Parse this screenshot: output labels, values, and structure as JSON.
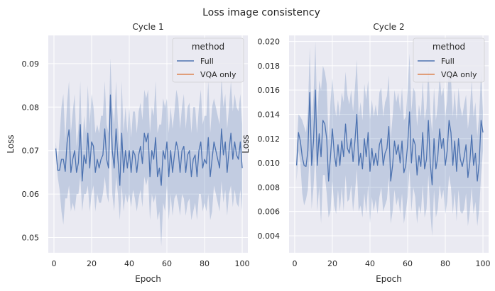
{
  "figure": {
    "suptitle": "Loss image consistency"
  },
  "colors": {
    "background": "#eaeaf2",
    "grid": "#ffffff",
    "Full": "#4c72b0",
    "VQA only": "#dd8452",
    "band_opacity": 0.25
  },
  "chart_data": [
    {
      "type": "line",
      "title": "Cycle 1",
      "xlabel": "Epoch",
      "ylabel": "Loss",
      "xlim": [
        -3,
        103
      ],
      "ylim": [
        0.0465,
        0.0965
      ],
      "xticks": [
        0,
        20,
        40,
        60,
        80,
        100
      ],
      "yticks": [
        0.05,
        0.06,
        0.07,
        0.08,
        0.09
      ],
      "ytick_labels": [
        "0.05",
        "0.06",
        "0.07",
        "0.08",
        "0.09"
      ],
      "grid": true,
      "legend": {
        "title": "method",
        "placement": "upper right",
        "entries": [
          "Full",
          "VQA only"
        ]
      },
      "series": [
        {
          "name": "Full",
          "x": [
            1,
            2,
            3,
            4,
            5,
            6,
            7,
            8,
            9,
            10,
            11,
            12,
            13,
            14,
            15,
            16,
            17,
            18,
            19,
            20,
            21,
            22,
            23,
            24,
            25,
            26,
            27,
            28,
            29,
            30,
            31,
            32,
            33,
            34,
            35,
            36,
            37,
            38,
            39,
            40,
            41,
            42,
            43,
            44,
            45,
            46,
            47,
            48,
            49,
            50,
            51,
            52,
            53,
            54,
            55,
            56,
            57,
            58,
            59,
            60,
            61,
            62,
            63,
            64,
            65,
            66,
            67,
            68,
            69,
            70,
            71,
            72,
            73,
            74,
            75,
            76,
            77,
            78,
            79,
            80,
            81,
            82,
            83,
            84,
            85,
            86,
            87,
            88,
            89,
            90,
            91,
            92,
            93,
            94,
            95,
            96,
            97,
            98,
            99,
            100
          ],
          "y": [
            0.0705,
            0.0655,
            0.0655,
            0.068,
            0.068,
            0.0652,
            0.072,
            0.0748,
            0.065,
            0.068,
            0.07,
            0.065,
            0.0672,
            0.076,
            0.063,
            0.069,
            0.067,
            0.074,
            0.066,
            0.072,
            0.071,
            0.065,
            0.068,
            0.066,
            0.068,
            0.069,
            0.075,
            0.068,
            0.066,
            0.0828,
            0.07,
            0.066,
            0.075,
            0.068,
            0.062,
            0.074,
            0.065,
            0.07,
            0.066,
            0.07,
            0.065,
            0.07,
            0.069,
            0.065,
            0.069,
            0.071,
            0.067,
            0.074,
            0.072,
            0.074,
            0.064,
            0.07,
            0.068,
            0.073,
            0.064,
            0.066,
            0.062,
            0.07,
            0.068,
            0.072,
            0.064,
            0.07,
            0.065,
            0.069,
            0.072,
            0.07,
            0.065,
            0.07,
            0.071,
            0.065,
            0.069,
            0.07,
            0.064,
            0.068,
            0.069,
            0.064,
            0.07,
            0.072,
            0.066,
            0.068,
            0.067,
            0.073,
            0.064,
            0.068,
            0.072,
            0.07,
            0.068,
            0.066,
            0.075,
            0.069,
            0.072,
            0.065,
            0.07,
            0.074,
            0.068,
            0.072,
            0.069,
            0.068,
            0.072,
            0.066
          ],
          "ci_lower": [
            0.069,
            0.064,
            0.061,
            0.056,
            0.053,
            0.059,
            0.059,
            0.062,
            0.056,
            0.058,
            0.056,
            0.06,
            0.06,
            0.064,
            0.056,
            0.06,
            0.06,
            0.062,
            0.056,
            0.06,
            0.062,
            0.056,
            0.06,
            0.058,
            0.058,
            0.06,
            0.064,
            0.06,
            0.058,
            0.075,
            0.06,
            0.056,
            0.064,
            0.06,
            0.054,
            0.062,
            0.056,
            0.06,
            0.058,
            0.06,
            0.057,
            0.061,
            0.059,
            0.056,
            0.059,
            0.061,
            0.057,
            0.064,
            0.062,
            0.064,
            0.054,
            0.06,
            0.058,
            0.06,
            0.054,
            0.056,
            0.048,
            0.058,
            0.056,
            0.062,
            0.054,
            0.06,
            0.055,
            0.059,
            0.06,
            0.058,
            0.055,
            0.06,
            0.059,
            0.055,
            0.058,
            0.059,
            0.054,
            0.056,
            0.058,
            0.054,
            0.06,
            0.06,
            0.056,
            0.058,
            0.056,
            0.06,
            0.054,
            0.056,
            0.062,
            0.06,
            0.058,
            0.056,
            0.063,
            0.058,
            0.061,
            0.055,
            0.06,
            0.062,
            0.057,
            0.061,
            0.058,
            0.057,
            0.061,
            0.056
          ],
          "ci_upper": [
            0.072,
            0.067,
            0.073,
            0.08,
            0.083,
            0.072,
            0.081,
            0.086,
            0.074,
            0.079,
            0.083,
            0.071,
            0.075,
            0.086,
            0.07,
            0.078,
            0.074,
            0.085,
            0.076,
            0.083,
            0.08,
            0.074,
            0.076,
            0.074,
            0.078,
            0.078,
            0.086,
            0.076,
            0.074,
            0.0912,
            0.08,
            0.076,
            0.086,
            0.076,
            0.07,
            0.086,
            0.074,
            0.08,
            0.074,
            0.08,
            0.073,
            0.079,
            0.079,
            0.074,
            0.079,
            0.081,
            0.077,
            0.084,
            0.082,
            0.084,
            0.074,
            0.08,
            0.078,
            0.086,
            0.074,
            0.076,
            0.076,
            0.082,
            0.08,
            0.082,
            0.074,
            0.08,
            0.075,
            0.079,
            0.084,
            0.082,
            0.075,
            0.08,
            0.083,
            0.075,
            0.08,
            0.081,
            0.074,
            0.08,
            0.08,
            0.074,
            0.08,
            0.084,
            0.076,
            0.078,
            0.078,
            0.086,
            0.074,
            0.08,
            0.082,
            0.08,
            0.078,
            0.076,
            0.087,
            0.08,
            0.083,
            0.075,
            0.08,
            0.086,
            0.079,
            0.083,
            0.08,
            0.079,
            0.083,
            0.076
          ]
        },
        {
          "name": "VQA only",
          "x": [],
          "y": []
        }
      ]
    },
    {
      "type": "line",
      "title": "Cycle 2",
      "xlabel": "Epoch",
      "ylabel": "Loss",
      "xlim": [
        -3,
        103
      ],
      "ylim": [
        0.0026,
        0.0205
      ],
      "xticks": [
        0,
        20,
        40,
        60,
        80,
        100
      ],
      "yticks": [
        0.004,
        0.006,
        0.008,
        0.01,
        0.012,
        0.014,
        0.016,
        0.018,
        0.02
      ],
      "ytick_labels": [
        "0.004",
        "0.006",
        "0.008",
        "0.010",
        "0.012",
        "0.014",
        "0.016",
        "0.018",
        "0.020"
      ],
      "grid": true,
      "legend": {
        "title": "method",
        "placement": "upper right",
        "entries": [
          "Full",
          "VQA only"
        ]
      },
      "series": [
        {
          "name": "Full",
          "x": [
            1,
            2,
            3,
            4,
            5,
            6,
            7,
            8,
            9,
            10,
            11,
            12,
            13,
            14,
            15,
            16,
            17,
            18,
            19,
            20,
            21,
            22,
            23,
            24,
            25,
            26,
            27,
            28,
            29,
            30,
            31,
            32,
            33,
            34,
            35,
            36,
            37,
            38,
            39,
            40,
            41,
            42,
            43,
            44,
            45,
            46,
            47,
            48,
            49,
            50,
            51,
            52,
            53,
            54,
            55,
            56,
            57,
            58,
            59,
            60,
            61,
            62,
            63,
            64,
            65,
            66,
            67,
            68,
            69,
            70,
            71,
            72,
            73,
            74,
            75,
            76,
            77,
            78,
            79,
            80,
            81,
            82,
            83,
            84,
            85,
            86,
            87,
            88,
            89,
            90,
            91,
            92,
            93,
            94,
            95,
            96,
            97,
            98,
            99,
            100
          ],
          "y": [
            0.0098,
            0.0125,
            0.0118,
            0.0105,
            0.0098,
            0.0097,
            0.011,
            0.0158,
            0.0098,
            0.0118,
            0.016,
            0.0098,
            0.0124,
            0.0105,
            0.0135,
            0.0132,
            0.012,
            0.0085,
            0.0105,
            0.0128,
            0.0108,
            0.0097,
            0.0115,
            0.0098,
            0.0118,
            0.0105,
            0.0132,
            0.0112,
            0.0108,
            0.012,
            0.0101,
            0.0118,
            0.014,
            0.0098,
            0.0108,
            0.0095,
            0.012,
            0.0105,
            0.0125,
            0.0093,
            0.0112,
            0.0098,
            0.0108,
            0.0098,
            0.0115,
            0.012,
            0.0098,
            0.0108,
            0.0112,
            0.013,
            0.0085,
            0.0098,
            0.0118,
            0.0107,
            0.0115,
            0.01,
            0.0118,
            0.0092,
            0.0098,
            0.0115,
            0.0142,
            0.01,
            0.012,
            0.0115,
            0.009,
            0.0106,
            0.0097,
            0.0125,
            0.0095,
            0.0103,
            0.0135,
            0.01,
            0.0082,
            0.012,
            0.0095,
            0.0105,
            0.0128,
            0.0112,
            0.012,
            0.0098,
            0.011,
            0.0135,
            0.0125,
            0.0098,
            0.0118,
            0.0093,
            0.012,
            0.0103,
            0.0097,
            0.0105,
            0.0115,
            0.0088,
            0.01,
            0.0123,
            0.0098,
            0.0108,
            0.0085,
            0.01,
            0.0135,
            0.0125
          ],
          "ci_lower": [
            0.0085,
            0.011,
            0.01,
            0.0075,
            0.0065,
            0.007,
            0.0078,
            0.011,
            0.0062,
            0.008,
            0.011,
            0.006,
            0.008,
            0.005,
            0.009,
            0.009,
            0.0075,
            0.0055,
            0.006,
            0.0085,
            0.0065,
            0.0058,
            0.0078,
            0.006,
            0.008,
            0.006,
            0.009,
            0.0068,
            0.007,
            0.0082,
            0.006,
            0.0075,
            0.0095,
            0.006,
            0.0065,
            0.0055,
            0.0075,
            0.0058,
            0.0082,
            0.005,
            0.0072,
            0.006,
            0.007,
            0.0058,
            0.0072,
            0.008,
            0.006,
            0.0065,
            0.007,
            0.0088,
            0.005,
            0.006,
            0.0078,
            0.0065,
            0.0072,
            0.0058,
            0.0075,
            0.005,
            0.006,
            0.0072,
            0.0095,
            0.006,
            0.008,
            0.0072,
            0.005,
            0.0065,
            0.0058,
            0.0082,
            0.0055,
            0.0062,
            0.009,
            0.006,
            0.004,
            0.0078,
            0.0055,
            0.0062,
            0.0082,
            0.007,
            0.0078,
            0.0058,
            0.0068,
            0.009,
            0.008,
            0.0058,
            0.0076,
            0.0052,
            0.0078,
            0.006,
            0.0058,
            0.0062,
            0.0075,
            0.0048,
            0.006,
            0.008,
            0.0058,
            0.0068,
            0.0048,
            0.0062,
            0.009,
            0.011
          ],
          "ci_upper": [
            0.011,
            0.014,
            0.0138,
            0.0135,
            0.013,
            0.0125,
            0.0142,
            0.0195,
            0.0135,
            0.0155,
            0.02,
            0.0135,
            0.0168,
            0.016,
            0.018,
            0.0175,
            0.0165,
            0.0118,
            0.015,
            0.017,
            0.015,
            0.0138,
            0.0152,
            0.0138,
            0.0158,
            0.015,
            0.0175,
            0.0156,
            0.0148,
            0.016,
            0.0142,
            0.0162,
            0.0185,
            0.0138,
            0.015,
            0.0135,
            0.0165,
            0.0152,
            0.0168,
            0.0136,
            0.0152,
            0.0138,
            0.0148,
            0.0138,
            0.0158,
            0.0162,
            0.0138,
            0.015,
            0.0155,
            0.0172,
            0.012,
            0.0138,
            0.016,
            0.015,
            0.0158,
            0.0142,
            0.0162,
            0.0135,
            0.0138,
            0.016,
            0.019,
            0.0142,
            0.0162,
            0.0158,
            0.013,
            0.0148,
            0.0138,
            0.0168,
            0.0135,
            0.0145,
            0.018,
            0.0142,
            0.0125,
            0.0162,
            0.0135,
            0.0148,
            0.0172,
            0.0155,
            0.0162,
            0.0138,
            0.0152,
            0.018,
            0.017,
            0.0138,
            0.016,
            0.0135,
            0.0162,
            0.0146,
            0.0138,
            0.0148,
            0.0156,
            0.0128,
            0.0142,
            0.0168,
            0.0138,
            0.015,
            0.0122,
            0.014,
            0.0175,
            0.0142
          ]
        },
        {
          "name": "VQA only",
          "x": [],
          "y": []
        }
      ]
    }
  ]
}
